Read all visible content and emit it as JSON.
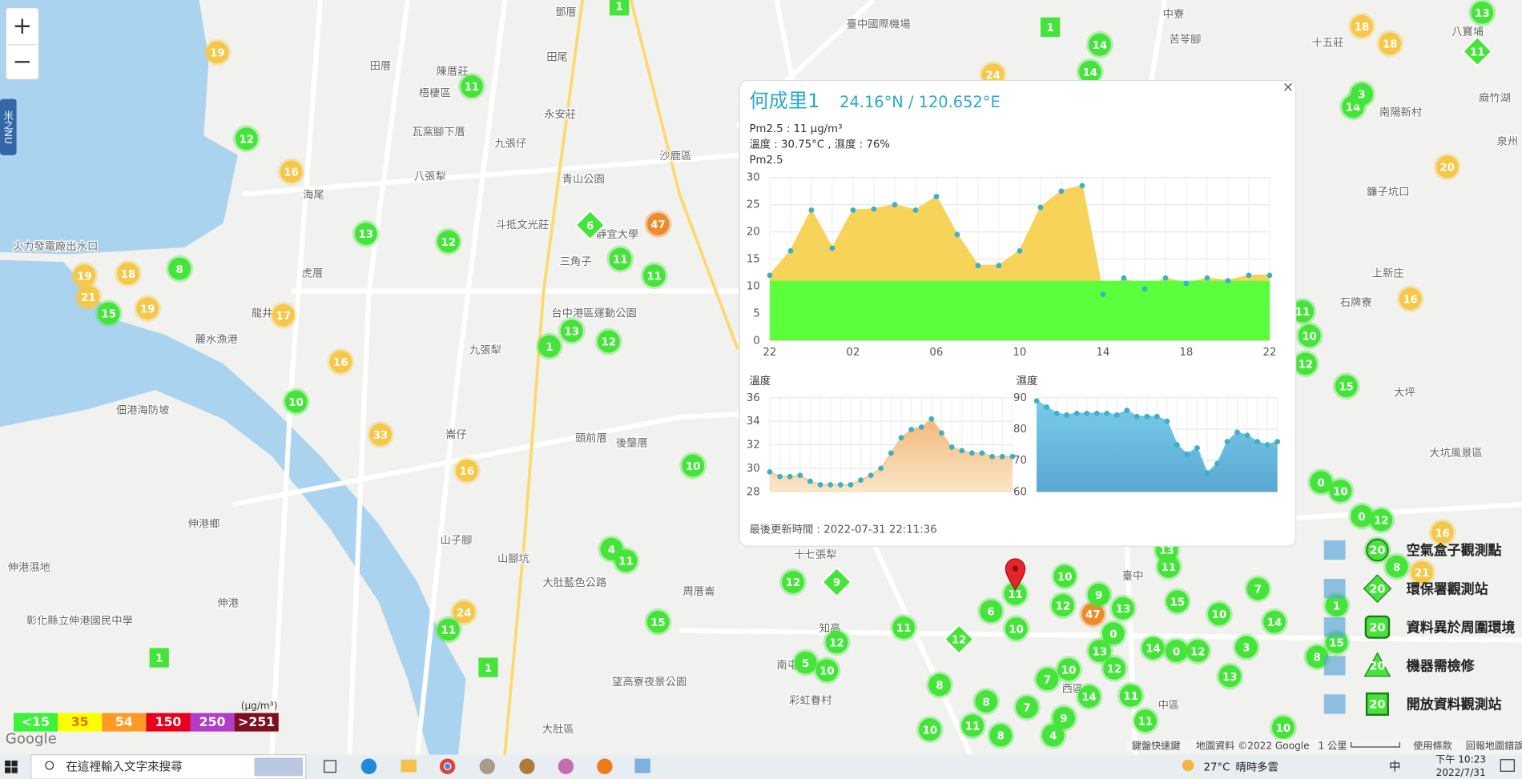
{
  "map": {
    "zoom_in": "+",
    "zoom_out": "−",
    "side_tab": "米之NU",
    "places": [
      "鄧厝",
      "臺中國際機場",
      "田厝",
      "陳厝莊",
      "梧棲區",
      "田尾",
      "永安莊",
      "瓦窯腳下厝",
      "九張仔",
      "八張犁",
      "海尾",
      "斗抵文光莊",
      "虎厝",
      "龍井",
      "麗水漁港",
      "沙鹿區",
      "青山公園",
      "三角子",
      "靜宜大學",
      "九張犁",
      "台中港區運動公園",
      "頭前厝",
      "後壟厝",
      "佃港海防坡",
      "伸港鄉",
      "伸港",
      "崙仔",
      "山子腳",
      "山腳坑",
      "大肚藍色公路",
      "大肚區",
      "望高寮夜景公園",
      "彰化縣立伸港國民中學",
      "火力發電廠出水口",
      "伸港濕地",
      "南屯",
      "臺中",
      "西區",
      "中區",
      "南陽新村",
      "十五莊",
      "八寶埔",
      "麻竹湖",
      "泉州",
      "鐮子坑口",
      "上新庄",
      "石牌寮",
      "大坪",
      "大坑風景區",
      "中寮",
      "苦苓腳",
      "十七張犁",
      "周厝崙",
      "知高",
      "彩虹眷村"
    ],
    "markers": [
      {
        "label": "19",
        "color": "#f5c84a"
      },
      {
        "label": "16",
        "color": "#f5c84a"
      },
      {
        "label": "19",
        "color": "#f5c84a"
      },
      {
        "label": "18",
        "color": "#f5c84a"
      },
      {
        "label": "21",
        "color": "#f5c84a"
      },
      {
        "label": "19",
        "color": "#f5c84a"
      },
      {
        "label": "17",
        "color": "#f5c84a"
      },
      {
        "label": "16",
        "color": "#f5c84a"
      },
      {
        "label": "33",
        "color": "#f5c84a"
      },
      {
        "label": "16",
        "color": "#f5c84a"
      },
      {
        "label": "24",
        "color": "#f5c84a"
      },
      {
        "label": "24",
        "color": "#f5c84a"
      },
      {
        "label": "18",
        "color": "#f5c84a"
      },
      {
        "label": "18",
        "color": "#f5c84a"
      },
      {
        "label": "20",
        "color": "#f5c84a"
      },
      {
        "label": "16",
        "color": "#f5c84a"
      },
      {
        "label": "16",
        "color": "#f5c84a"
      },
      {
        "label": "21",
        "color": "#f5c84a"
      },
      {
        "label": "47",
        "color": "#ef8a2c"
      },
      {
        "label": "47",
        "color": "#ef8a2c"
      },
      {
        "label": "11",
        "color": "#45e43a"
      },
      {
        "label": "12",
        "color": "#45e43a"
      },
      {
        "label": "8",
        "color": "#45e43a"
      },
      {
        "label": "15",
        "color": "#45e43a"
      },
      {
        "label": "13",
        "color": "#45e43a"
      },
      {
        "label": "12",
        "color": "#45e43a"
      },
      {
        "label": "10",
        "color": "#45e43a"
      },
      {
        "label": "11",
        "color": "#45e43a"
      },
      {
        "label": "11",
        "color": "#45e43a"
      },
      {
        "label": "1",
        "color": "#45e43a"
      },
      {
        "label": "13",
        "color": "#45e43a"
      },
      {
        "label": "12",
        "color": "#45e43a"
      },
      {
        "label": "10",
        "color": "#45e43a"
      },
      {
        "label": "4",
        "color": "#45e43a"
      },
      {
        "label": "11",
        "color": "#45e43a"
      },
      {
        "label": "15",
        "color": "#45e43a"
      },
      {
        "label": "12",
        "color": "#45e43a"
      },
      {
        "label": "11",
        "color": "#45e43a"
      },
      {
        "label": "11",
        "color": "#45e43a"
      },
      {
        "label": "12",
        "color": "#45e43a"
      },
      {
        "label": "5",
        "color": "#45e43a"
      },
      {
        "label": "10",
        "color": "#45e43a"
      },
      {
        "label": "8",
        "color": "#45e43a"
      },
      {
        "label": "8",
        "color": "#45e43a"
      },
      {
        "label": "10",
        "color": "#45e43a"
      },
      {
        "label": "6",
        "color": "#45e43a"
      },
      {
        "label": "11",
        "color": "#45e43a"
      },
      {
        "label": "10",
        "color": "#45e43a"
      },
      {
        "label": "12",
        "color": "#45e43a"
      },
      {
        "label": "9",
        "color": "#45e43a"
      },
      {
        "label": "13",
        "color": "#45e43a"
      },
      {
        "label": "0",
        "color": "#45e43a"
      },
      {
        "label": "13",
        "color": "#45e43a"
      },
      {
        "label": "10",
        "color": "#45e43a"
      },
      {
        "label": "7",
        "color": "#45e43a"
      },
      {
        "label": "14",
        "color": "#45e43a"
      },
      {
        "label": "12",
        "color": "#45e43a"
      },
      {
        "label": "11",
        "color": "#45e43a"
      },
      {
        "label": "14",
        "color": "#45e43a"
      },
      {
        "label": "0",
        "color": "#45e43a"
      },
      {
        "label": "12",
        "color": "#45e43a"
      },
      {
        "label": "10",
        "color": "#45e43a"
      },
      {
        "label": "3",
        "color": "#45e43a"
      },
      {
        "label": "13",
        "color": "#45e43a"
      },
      {
        "label": "14",
        "color": "#45e43a"
      },
      {
        "label": "7",
        "color": "#45e43a"
      },
      {
        "label": "15",
        "color": "#45e43a"
      },
      {
        "label": "11",
        "color": "#45e43a"
      },
      {
        "label": "13",
        "color": "#45e43a"
      },
      {
        "label": "7",
        "color": "#45e43a"
      },
      {
        "label": "9",
        "color": "#45e43a"
      },
      {
        "label": "4",
        "color": "#45e43a"
      },
      {
        "label": "11",
        "color": "#45e43a"
      },
      {
        "label": "11",
        "color": "#45e43a"
      },
      {
        "label": "10",
        "color": "#45e43a"
      },
      {
        "label": "8",
        "color": "#45e43a"
      },
      {
        "label": "10",
        "color": "#45e43a"
      },
      {
        "label": "8",
        "color": "#45e43a"
      },
      {
        "label": "1",
        "color": "#45e43a"
      },
      {
        "label": "15",
        "color": "#45e43a"
      },
      {
        "label": "8",
        "color": "#45e43a"
      },
      {
        "label": "0",
        "color": "#45e43a"
      },
      {
        "label": "12",
        "color": "#45e43a"
      },
      {
        "label": "10",
        "color": "#45e43a"
      },
      {
        "label": "0",
        "color": "#45e43a"
      },
      {
        "label": "15",
        "color": "#45e43a"
      },
      {
        "label": "12",
        "color": "#45e43a"
      },
      {
        "label": "10",
        "color": "#45e43a"
      },
      {
        "label": "11",
        "color": "#45e43a"
      },
      {
        "label": "14",
        "color": "#45e43a"
      },
      {
        "label": "3",
        "color": "#45e43a"
      },
      {
        "label": "14",
        "color": "#45e43a"
      },
      {
        "label": "14",
        "color": "#45e43a"
      },
      {
        "label": "13",
        "color": "#45e43a"
      },
      {
        "label": "1",
        "color": "#45e43a",
        "shape": "square"
      },
      {
        "label": "1",
        "color": "#45e43a",
        "shape": "square"
      },
      {
        "label": "1",
        "color": "#45e43a",
        "shape": "square"
      },
      {
        "label": "1",
        "color": "#45e43a",
        "shape": "square"
      },
      {
        "label": "6",
        "color": "#45e43a",
        "shape": "diamond"
      },
      {
        "label": "9",
        "color": "#45e43a",
        "shape": "diamond"
      },
      {
        "label": "12",
        "color": "#45e43a",
        "shape": "diamond"
      },
      {
        "label": "11",
        "color": "#45e43a",
        "shape": "diamond"
      }
    ],
    "attribution": [
      "鍵盤快速鍵",
      "地圖資料 ©2022 Google",
      "1 公里",
      "使用條款",
      "回報地圖錯誤"
    ],
    "logo": "Google"
  },
  "popup": {
    "close": "×",
    "title": "何成里1",
    "coords": "24.16°N / 120.652°E",
    "lines": [
      "Pm2.5 : 11 μg/m³",
      "溫度 : 30.75°C , 濕度 : 76%"
    ],
    "updated": "最後更新時間 : 2022-07-31 22:11:36"
  },
  "chart_data": [
    {
      "type": "area",
      "title": "Pm2.5",
      "categories": [
        "22",
        null,
        null,
        null,
        "02",
        null,
        null,
        null,
        "06",
        null,
        null,
        null,
        "10",
        null,
        null,
        null,
        "14",
        null,
        null,
        null,
        "18",
        null,
        null,
        null,
        "22"
      ],
      "values": [
        12,
        16.5,
        24,
        17,
        24,
        24.2,
        25,
        24,
        26.5,
        19.5,
        13.8,
        13.8,
        16.5,
        24.5,
        27.5,
        28.5,
        8.5,
        11.5,
        9.5,
        11.5,
        10.5,
        11.5,
        11,
        12,
        12
      ],
      "color": "#f7d35a",
      "point_color": "#3bb0c9",
      "bands": [
        {
          "from": 0,
          "to": 11,
          "color": "#5cff3c"
        }
      ],
      "ylim": [
        0,
        30
      ],
      "yticks": [
        0,
        5,
        10,
        15,
        20,
        25,
        30
      ],
      "grid": true
    },
    {
      "type": "area",
      "title": "溫度",
      "values": [
        29.7,
        29.3,
        29.3,
        29.4,
        28.9,
        28.6,
        28.6,
        28.6,
        28.6,
        29,
        29.4,
        30,
        31.3,
        32.6,
        33.3,
        33.5,
        34.2,
        33,
        31.8,
        31.5,
        31.3,
        31.3,
        31,
        31,
        31
      ],
      "color": "#f5c88a",
      "point_color": "#3bb0c9",
      "ylim": [
        28,
        36
      ],
      "yticks": [
        28,
        30,
        32,
        34,
        36
      ],
      "grid": true
    },
    {
      "type": "area",
      "title": "濕度",
      "values": [
        89,
        87,
        85,
        84.5,
        85,
        85,
        85,
        85,
        84.5,
        86,
        84,
        84,
        84,
        82.5,
        75,
        72,
        74,
        66,
        69,
        76,
        79,
        78,
        76,
        75,
        76
      ],
      "color": "#6fc3e3",
      "point_color": "#3bb0c9",
      "ylim": [
        60,
        90
      ],
      "yticks": [
        60,
        70,
        80,
        90
      ],
      "grid": true
    }
  ],
  "pm_legend": {
    "unit": "(μg/m³)",
    "levels": [
      {
        "label": "<15",
        "color": "#3df23a"
      },
      {
        "label": "35",
        "color": "#ffff00"
      },
      {
        "label": "54",
        "color": "#ff9b24"
      },
      {
        "label": "150",
        "color": "#e8001c"
      },
      {
        "label": "250",
        "color": "#b03cc8"
      },
      {
        "label": ">251",
        "color": "#7d1020"
      }
    ]
  },
  "station_legend": [
    {
      "label": "空氣盒子觀測點",
      "icon": "20"
    },
    {
      "label": "環保署觀測站",
      "icon": "20"
    },
    {
      "label": "資料異於周圍環境",
      "icon": "20"
    },
    {
      "label": "機器需檢修",
      "icon": "20"
    },
    {
      "label": "開放資料觀測站",
      "icon": "20"
    }
  ],
  "taskbar": {
    "search": "在這裡輸入文字來搜尋",
    "temperature": "27°C",
    "weather": "晴時多雲",
    "ime": "中",
    "time": "下午 10:23",
    "date": "2022/7/31"
  }
}
